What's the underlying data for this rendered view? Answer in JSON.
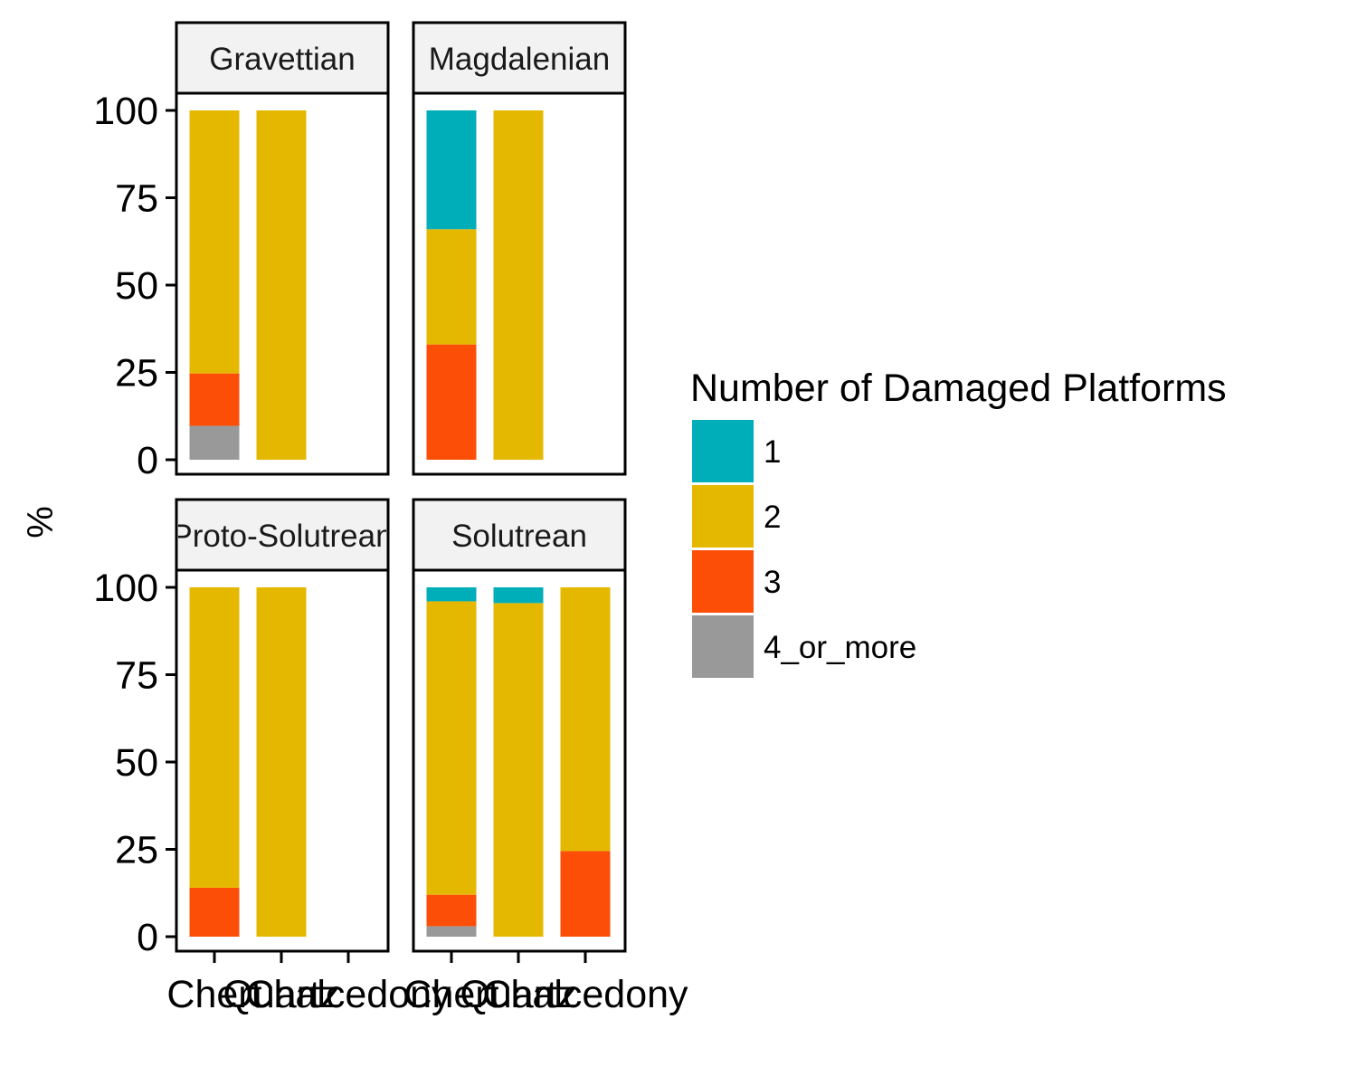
{
  "chart_data": {
    "type": "bar",
    "stacked": true,
    "ylabel": "%",
    "ylim": [
      0,
      100
    ],
    "yticks": [
      "0",
      "25",
      "50",
      "75",
      "100"
    ],
    "categories": [
      "Chert",
      "Quartz",
      "Chalcedony"
    ],
    "legend": {
      "title": "Number of Damaged Platforms",
      "position": "right",
      "items": [
        {
          "label": "1",
          "color": "#00AEBA"
        },
        {
          "label": "2",
          "color": "#E5B800"
        },
        {
          "label": "3",
          "color": "#FC4E07"
        },
        {
          "label": "4_or_more",
          "color": "#999999"
        }
      ]
    },
    "stack_order_bottom_to_top": [
      "4_or_more",
      "3",
      "2",
      "1"
    ],
    "panels": [
      {
        "name": "Gravettian",
        "bars": [
          {
            "category": "Chert",
            "values": {
              "1": 0,
              "2": 75.3,
              "3": 15.0,
              "4_or_more": 9.7
            }
          },
          {
            "category": "Quartz",
            "values": {
              "1": 0,
              "2": 100,
              "3": 0,
              "4_or_more": 0
            }
          }
        ]
      },
      {
        "name": "Magdalenian",
        "bars": [
          {
            "category": "Chert",
            "values": {
              "1": 34.0,
              "2": 33.0,
              "3": 33.0,
              "4_or_more": 0
            }
          },
          {
            "category": "Quartz",
            "values": {
              "1": 0,
              "2": 100,
              "3": 0,
              "4_or_more": 0
            }
          }
        ]
      },
      {
        "name": "Proto-Solutrean",
        "bars": [
          {
            "category": "Chert",
            "values": {
              "1": 0,
              "2": 86.0,
              "3": 14.0,
              "4_or_more": 0
            }
          },
          {
            "category": "Quartz",
            "values": {
              "1": 0,
              "2": 100,
              "3": 0,
              "4_or_more": 0
            }
          }
        ]
      },
      {
        "name": "Solutrean",
        "bars": [
          {
            "category": "Chert",
            "values": {
              "1": 4.0,
              "2": 84.0,
              "3": 9.0,
              "4_or_more": 3.0
            }
          },
          {
            "category": "Quartz",
            "values": {
              "1": 4.5,
              "2": 95.5,
              "3": 0,
              "4_or_more": 0
            }
          },
          {
            "category": "Chalcedony",
            "values": {
              "1": 0,
              "2": 75.5,
              "3": 24.5,
              "4_or_more": 0
            }
          }
        ]
      }
    ]
  }
}
